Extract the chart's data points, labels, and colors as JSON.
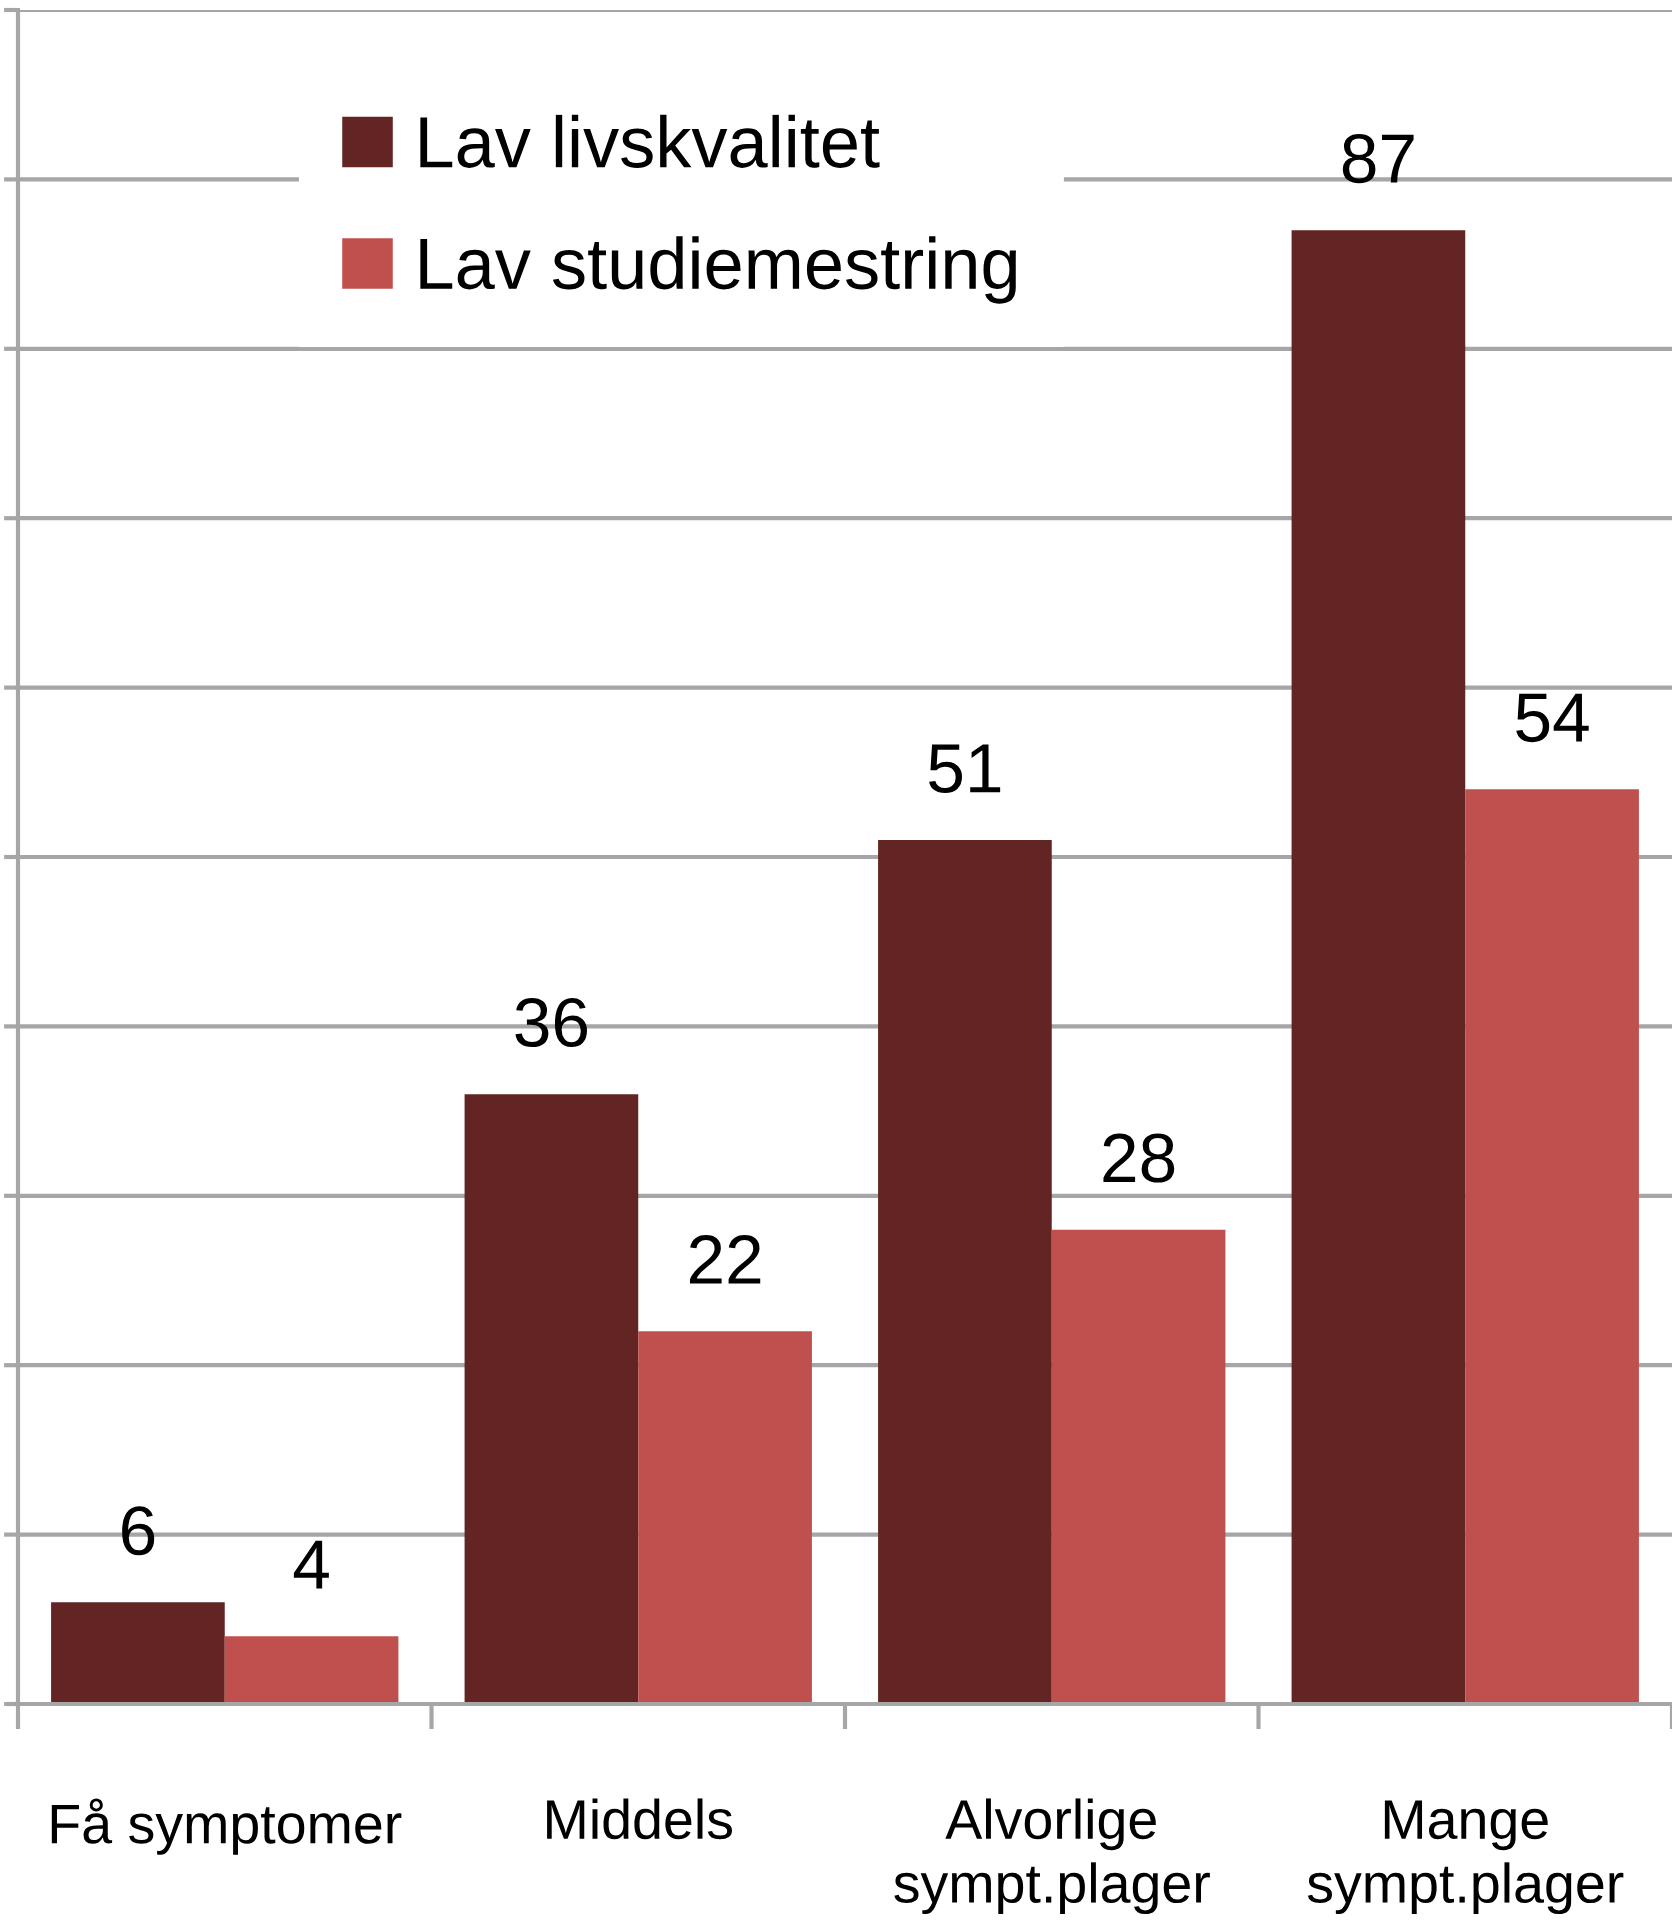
{
  "chart_data": {
    "type": "bar",
    "categories": [
      "Få symptomer",
      "Middels",
      "Alvorlige\nsympt.plager",
      "Mange\nsympt.plager"
    ],
    "series": [
      {
        "name": "Lav livskvalitet",
        "color": "#632523",
        "values": [
          6,
          36,
          51,
          87
        ]
      },
      {
        "name": "Lav studiemestring",
        "color": "#c0504d",
        "values": [
          4,
          22,
          28,
          54
        ]
      }
    ],
    "ylim": [
      0,
      100
    ],
    "yticks": [
      {
        "value": 0,
        "label": null
      },
      {
        "value": 10,
        "label": null
      },
      {
        "value": 20,
        "label": null
      },
      {
        "value": 30,
        "label": null
      },
      {
        "value": 40,
        "label": null
      },
      {
        "value": 50,
        "label": null
      },
      {
        "value": 60,
        "label": null
      },
      {
        "value": 70,
        "label": null
      },
      {
        "value": 80,
        "label": null
      },
      {
        "value": 90,
        "label": null
      },
      {
        "value": 100,
        "label": null
      }
    ],
    "tick_labels": "x",
    "data_labels": true,
    "grid": "y",
    "legend": "top left"
  }
}
